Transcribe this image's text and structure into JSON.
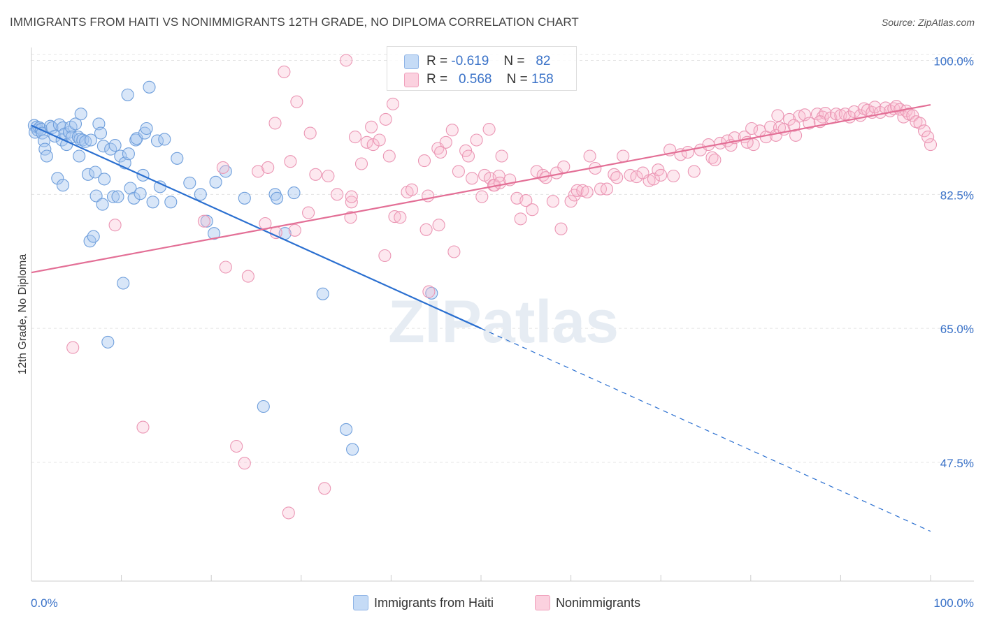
{
  "title": "IMMIGRANTS FROM HAITI VS NONIMMIGRANTS 12TH GRADE, NO DIPLOMA CORRELATION CHART",
  "source": "Source: ZipAtlas.com",
  "watermark": "ZIPatlas",
  "legend": {
    "rows": [
      {
        "r_label": "R =",
        "r_value": "-0.619",
        "n_label": "N =",
        "n_value": "82",
        "color": "#a8c8f0"
      },
      {
        "r_label": "R =",
        "r_value": "0.568",
        "n_label": "N =",
        "n_value": "158",
        "color": "#f8bcd0"
      }
    ]
  },
  "bottom_legend": [
    {
      "label": "Immigrants from Haiti",
      "color": "#a8c8f0"
    },
    {
      "label": "Nonimmigrants",
      "color": "#f8bcd0"
    }
  ],
  "chart_data": {
    "type": "scatter",
    "title": "IMMIGRANTS FROM HAITI VS NONIMMIGRANTS 12TH GRADE, NO DIPLOMA CORRELATION CHART",
    "xlabel": "",
    "ylabel": "12th Grade, No Diploma",
    "xlim": [
      0,
      100
    ],
    "ylim": [
      32,
      101.5
    ],
    "x_tick_labels": [
      "0.0%",
      "100.0%"
    ],
    "y_ticks": [
      47.5,
      65.0,
      82.5,
      100.0
    ],
    "y_tick_labels": [
      "47.5%",
      "65.0%",
      "82.5%",
      "100.0%"
    ],
    "grid": true,
    "legend_position": "top-center",
    "series": [
      {
        "name": "Immigrants from Haiti",
        "color": "#a8c8f0",
        "line_color": "#2a6fd0",
        "trend": {
          "x0": 0,
          "y0": 91.5,
          "x1": 100,
          "y1": 38.5,
          "solid_until": 50
        },
        "points": [
          [
            0.3,
            91.5
          ],
          [
            0.4,
            90.6
          ],
          [
            0.6,
            91.3
          ],
          [
            0.7,
            90.9
          ],
          [
            0.9,
            91.2
          ],
          [
            1.1,
            91.0
          ],
          [
            1.2,
            90.5
          ],
          [
            1.4,
            89.5
          ],
          [
            1.5,
            88.4
          ],
          [
            1.7,
            87.5
          ],
          [
            2.1,
            91.4
          ],
          [
            2.3,
            91.2
          ],
          [
            2.6,
            90.1
          ],
          [
            2.9,
            84.6
          ],
          [
            3.1,
            91.6
          ],
          [
            3.4,
            89.6
          ],
          [
            3.5,
            91.2
          ],
          [
            3.5,
            83.7
          ],
          [
            3.7,
            90.4
          ],
          [
            3.9,
            89.0
          ],
          [
            4.2,
            90.6
          ],
          [
            4.4,
            91.3
          ],
          [
            4.5,
            90.0
          ],
          [
            4.9,
            91.7
          ],
          [
            5.2,
            90.0
          ],
          [
            5.4,
            89.7
          ],
          [
            5.3,
            87.5
          ],
          [
            5.5,
            93.0
          ],
          [
            5.7,
            89.6
          ],
          [
            6.0,
            89.4
          ],
          [
            6.3,
            85.1
          ],
          [
            6.5,
            76.4
          ],
          [
            6.6,
            89.6
          ],
          [
            6.9,
            77.0
          ],
          [
            7.1,
            85.4
          ],
          [
            7.2,
            82.3
          ],
          [
            7.5,
            91.7
          ],
          [
            7.7,
            90.5
          ],
          [
            7.9,
            81.2
          ],
          [
            8.0,
            88.8
          ],
          [
            8.1,
            84.5
          ],
          [
            8.5,
            63.2
          ],
          [
            8.8,
            88.4
          ],
          [
            9.1,
            82.2
          ],
          [
            9.3,
            88.9
          ],
          [
            9.6,
            82.2
          ],
          [
            9.9,
            87.5
          ],
          [
            10.2,
            70.9
          ],
          [
            10.4,
            86.6
          ],
          [
            10.7,
            95.5
          ],
          [
            10.8,
            87.8
          ],
          [
            11.0,
            83.3
          ],
          [
            11.4,
            82.0
          ],
          [
            11.6,
            89.6
          ],
          [
            11.7,
            89.8
          ],
          [
            12.1,
            82.6
          ],
          [
            12.4,
            85.0
          ],
          [
            12.6,
            90.5
          ],
          [
            12.8,
            91.1
          ],
          [
            13.1,
            96.5
          ],
          [
            13.5,
            81.5
          ],
          [
            14.0,
            89.5
          ],
          [
            14.3,
            83.5
          ],
          [
            14.8,
            89.7
          ],
          [
            15.5,
            81.5
          ],
          [
            16.2,
            87.2
          ],
          [
            17.6,
            84.0
          ],
          [
            18.8,
            82.5
          ],
          [
            19.5,
            79.0
          ],
          [
            20.3,
            77.4
          ],
          [
            20.5,
            84.1
          ],
          [
            21.6,
            85.5
          ],
          [
            23.7,
            82.0
          ],
          [
            25.8,
            54.8
          ],
          [
            27.1,
            82.5
          ],
          [
            27.3,
            82.0
          ],
          [
            28.2,
            77.4
          ],
          [
            29.2,
            82.7
          ],
          [
            32.4,
            69.5
          ],
          [
            35.0,
            51.8
          ],
          [
            44.5,
            69.6
          ],
          [
            35.7,
            49.2
          ]
        ]
      },
      {
        "name": "Nonimmigrants",
        "color": "#f8bcd0",
        "line_color": "#e36f96",
        "trend": {
          "x0": 0,
          "y0": 72.3,
          "x1": 100,
          "y1": 94.2
        },
        "points": [
          [
            4.6,
            62.5
          ],
          [
            9.3,
            78.5
          ],
          [
            12.4,
            52.1
          ],
          [
            19.2,
            79.0
          ],
          [
            21.3,
            86.0
          ],
          [
            21.6,
            73.0
          ],
          [
            22.8,
            49.6
          ],
          [
            23.7,
            47.4
          ],
          [
            24.1,
            71.8
          ],
          [
            25.2,
            85.5
          ],
          [
            26.0,
            78.7
          ],
          [
            26.3,
            86.0
          ],
          [
            27.1,
            91.8
          ],
          [
            27.2,
            77.5
          ],
          [
            28.1,
            98.5
          ],
          [
            28.6,
            40.9
          ],
          [
            28.8,
            86.8
          ],
          [
            29.3,
            77.8
          ],
          [
            29.5,
            94.6
          ],
          [
            30.8,
            80.1
          ],
          [
            31.0,
            90.5
          ],
          [
            31.6,
            85.1
          ],
          [
            32.6,
            44.1
          ],
          [
            33.0,
            84.9
          ],
          [
            34.0,
            82.5
          ],
          [
            35.0,
            100.0
          ],
          [
            35.5,
            79.5
          ],
          [
            35.6,
            81.5
          ],
          [
            35.6,
            82.2
          ],
          [
            36.0,
            90.0
          ],
          [
            36.7,
            86.5
          ],
          [
            37.3,
            89.3
          ],
          [
            37.8,
            91.3
          ],
          [
            38.0,
            89.0
          ],
          [
            38.7,
            89.6
          ],
          [
            39.3,
            74.5
          ],
          [
            39.4,
            92.3
          ],
          [
            39.8,
            87.5
          ],
          [
            40.2,
            94.3
          ],
          [
            40.4,
            79.6
          ],
          [
            41.0,
            79.5
          ],
          [
            41.8,
            82.8
          ],
          [
            42.3,
            83.1
          ],
          [
            43.7,
            86.9
          ],
          [
            43.9,
            77.9
          ],
          [
            44.1,
            82.3
          ],
          [
            44.2,
            69.8
          ],
          [
            45.2,
            88.5
          ],
          [
            45.3,
            78.5
          ],
          [
            45.5,
            88.0
          ],
          [
            46.1,
            89.3
          ],
          [
            46.8,
            90.9
          ],
          [
            47.0,
            75.0
          ],
          [
            47.5,
            85.5
          ],
          [
            48.3,
            88.2
          ],
          [
            48.6,
            87.5
          ],
          [
            49.0,
            84.6
          ],
          [
            49.5,
            89.6
          ],
          [
            50.1,
            82.2
          ],
          [
            50.4,
            85.0
          ],
          [
            50.9,
            91.0
          ],
          [
            51.0,
            84.6
          ],
          [
            51.4,
            83.7
          ],
          [
            51.5,
            83.7
          ],
          [
            52.0,
            84.9
          ],
          [
            52.1,
            84.0
          ],
          [
            52.3,
            87.5
          ],
          [
            53.2,
            84.4
          ],
          [
            54.0,
            82.0
          ],
          [
            54.4,
            79.3
          ],
          [
            55.0,
            81.7
          ],
          [
            55.7,
            80.5
          ],
          [
            56.2,
            85.5
          ],
          [
            56.9,
            85.0
          ],
          [
            57.2,
            84.7
          ],
          [
            58.0,
            81.6
          ],
          [
            58.4,
            85.3
          ],
          [
            58.9,
            78.0
          ],
          [
            59.2,
            86.1
          ],
          [
            60.0,
            81.6
          ],
          [
            60.4,
            82.4
          ],
          [
            60.7,
            83.0
          ],
          [
            61.3,
            83.0
          ],
          [
            61.8,
            82.8
          ],
          [
            62.1,
            87.5
          ],
          [
            62.7,
            85.9
          ],
          [
            63.3,
            83.2
          ],
          [
            64.0,
            83.2
          ],
          [
            64.8,
            85.1
          ],
          [
            65.1,
            84.7
          ],
          [
            65.8,
            87.5
          ],
          [
            66.6,
            85.0
          ],
          [
            67.3,
            84.8
          ],
          [
            68.0,
            85.3
          ],
          [
            68.7,
            84.3
          ],
          [
            69.2,
            84.5
          ],
          [
            69.7,
            85.7
          ],
          [
            70.0,
            85.0
          ],
          [
            71.0,
            88.3
          ],
          [
            71.4,
            84.9
          ],
          [
            72.2,
            87.7
          ],
          [
            73.0,
            88.0
          ],
          [
            73.7,
            85.5
          ],
          [
            74.4,
            88.3
          ],
          [
            75.3,
            89.0
          ],
          [
            75.7,
            87.3
          ],
          [
            76.6,
            89.2
          ],
          [
            77.4,
            89.5
          ],
          [
            77.8,
            88.9
          ],
          [
            78.2,
            89.9
          ],
          [
            79.3,
            90.0
          ],
          [
            80.1,
            91.1
          ],
          [
            80.3,
            89.0
          ],
          [
            81.0,
            90.8
          ],
          [
            81.7,
            90.0
          ],
          [
            82.2,
            91.3
          ],
          [
            82.8,
            90.2
          ],
          [
            83.2,
            91.2
          ],
          [
            83.7,
            91.0
          ],
          [
            84.3,
            92.3
          ],
          [
            85.0,
            90.2
          ],
          [
            85.4,
            92.7
          ],
          [
            86.0,
            92.9
          ],
          [
            86.5,
            91.8
          ],
          [
            87.4,
            93.0
          ],
          [
            88.0,
            92.6
          ],
          [
            88.3,
            93.1
          ],
          [
            88.9,
            92.5
          ],
          [
            89.5,
            93.0
          ],
          [
            90.0,
            92.8
          ],
          [
            90.5,
            93.0
          ],
          [
            91.0,
            92.6
          ],
          [
            91.5,
            93.3
          ],
          [
            92.2,
            92.8
          ],
          [
            92.6,
            93.7
          ],
          [
            93.0,
            93.5
          ],
          [
            93.5,
            93.2
          ],
          [
            93.8,
            93.9
          ],
          [
            94.4,
            93.2
          ],
          [
            95.0,
            93.8
          ],
          [
            95.5,
            93.4
          ],
          [
            95.9,
            93.7
          ],
          [
            96.2,
            94.0
          ],
          [
            96.6,
            93.6
          ],
          [
            97.0,
            92.6
          ],
          [
            97.3,
            93.4
          ],
          [
            97.6,
            93.0
          ],
          [
            98.0,
            92.8
          ],
          [
            98.4,
            92.0
          ],
          [
            98.8,
            91.8
          ],
          [
            99.3,
            90.8
          ],
          [
            100.0,
            89.0
          ],
          [
            99.7,
            90.0
          ],
          [
            84.8,
            91.5
          ],
          [
            87.7,
            92.0
          ],
          [
            79.6,
            89.3
          ],
          [
            83.0,
            92.8
          ],
          [
            76.0,
            87.0
          ]
        ]
      }
    ]
  }
}
